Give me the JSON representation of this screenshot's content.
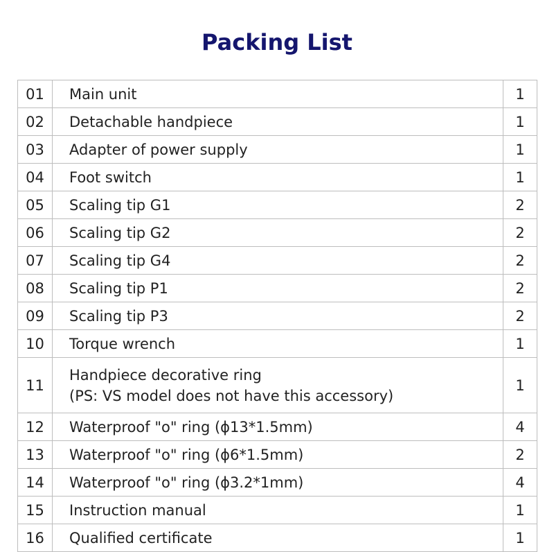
{
  "title": "Packing List",
  "rows": [
    {
      "no": "01",
      "name": "Main unit",
      "qty": "1"
    },
    {
      "no": "02",
      "name": "Detachable handpiece",
      "qty": "1"
    },
    {
      "no": "03",
      "name": "Adapter of power supply",
      "qty": "1"
    },
    {
      "no": "04",
      "name": "Foot switch",
      "qty": "1"
    },
    {
      "no": "05",
      "name": "Scaling tip G1",
      "qty": "2"
    },
    {
      "no": "06",
      "name": "Scaling tip G2",
      "qty": "2"
    },
    {
      "no": "07",
      "name": "Scaling tip G4",
      "qty": "2"
    },
    {
      "no": "08",
      "name": "Scaling tip P1",
      "qty": "2"
    },
    {
      "no": "09",
      "name": "Scaling tip P3",
      "qty": "2"
    },
    {
      "no": "10",
      "name": "Torque wrench",
      "qty": "1"
    },
    {
      "no": "11",
      "name": "Handpiece decorative ring",
      "note": "(PS: VS model does not have this accessory)",
      "qty": "1"
    },
    {
      "no": "12",
      "name": "Waterproof \"o\" ring (ϕ13*1.5mm)",
      "qty": "4"
    },
    {
      "no": "13",
      "name": "Waterproof \"o\" ring (ϕ6*1.5mm)",
      "qty": "2"
    },
    {
      "no": "14",
      "name": "Waterproof \"o\" ring (ϕ3.2*1mm)",
      "qty": "4"
    },
    {
      "no": "15",
      "name": "Instruction manual",
      "qty": "1"
    },
    {
      "no": "16",
      "name": "Qualified certificate",
      "qty": "1"
    }
  ]
}
